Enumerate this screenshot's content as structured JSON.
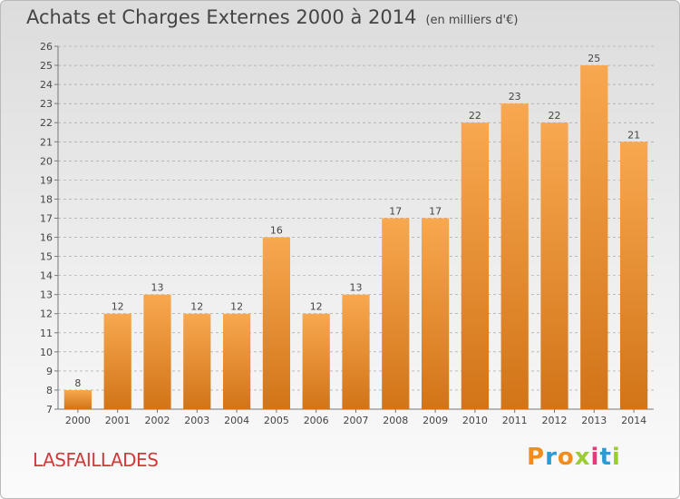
{
  "header": {
    "title": "Achats et Charges Externes 2000 à 2014",
    "subtitle": "(en milliers d'€)"
  },
  "commune": "LASFAILLADES",
  "logo": {
    "text": "Proxiti",
    "letters": [
      {
        "ch": "P",
        "color": "#f28c1c"
      },
      {
        "ch": "r",
        "color": "#2b9bd6"
      },
      {
        "ch": "o",
        "color": "#f28c1c"
      },
      {
        "ch": "x",
        "color": "#9acd32"
      },
      {
        "ch": "i",
        "color": "#e23a7a"
      },
      {
        "ch": "t",
        "color": "#2b9bd6"
      },
      {
        "ch": "i",
        "color": "#9acd32"
      }
    ]
  },
  "colors": {
    "bar_top": "#f8a850",
    "bar_bottom": "#d27418",
    "text": "#444444",
    "grid": "#999999"
  },
  "chart_data": {
    "type": "bar",
    "title": "Achats et Charges Externes 2000 à 2014",
    "categories": [
      "2000",
      "2001",
      "2002",
      "2003",
      "2004",
      "2005",
      "2006",
      "2007",
      "2008",
      "2009",
      "2010",
      "2011",
      "2012",
      "2013",
      "2014"
    ],
    "values": [
      8,
      12,
      13,
      12,
      12,
      16,
      12,
      13,
      17,
      17,
      22,
      23,
      22,
      25,
      21
    ],
    "ylim": [
      7,
      26
    ],
    "yticks": [
      7,
      8,
      9,
      10,
      11,
      12,
      13,
      14,
      15,
      16,
      17,
      18,
      19,
      20,
      21,
      22,
      23,
      24,
      25,
      26
    ],
    "xlabel": "",
    "ylabel": "",
    "grid": "dashed horizontal",
    "legend": "none"
  }
}
